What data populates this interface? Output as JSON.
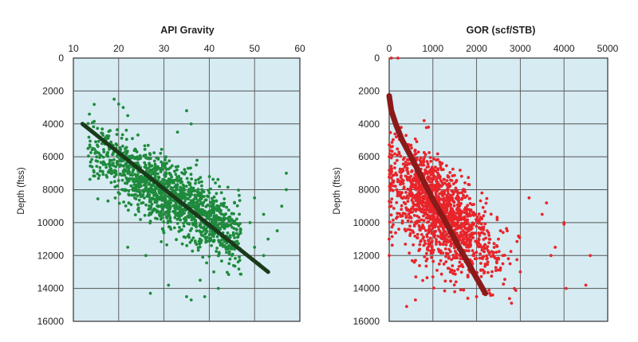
{
  "chart_data": [
    {
      "type": "scatter",
      "title": "API Gravity",
      "xlabel": "API Gravity",
      "ylabel": "Depth (ftss)",
      "xlim": [
        10,
        60
      ],
      "ylim": [
        0,
        16000
      ],
      "y_inverted": true,
      "x_axis_position": "top",
      "xticks": [
        "10",
        "20",
        "30",
        "40",
        "50",
        "60"
      ],
      "yticks": [
        "0",
        "2000",
        "4000",
        "6000",
        "8000",
        "10000",
        "12000",
        "14000",
        "16000"
      ],
      "grid": true,
      "point_color": "#1f8a3c",
      "trend_color": "#1a3a1a",
      "background_color": "#d6ebf2",
      "trend_line": {
        "x": [
          12,
          53
        ],
        "y": [
          4000,
          13000
        ]
      },
      "cloud": {
        "core_count": 1600,
        "x_range": [
          13,
          47
        ],
        "y_range": [
          2500,
          14700
        ],
        "x_spread": 5.5,
        "y_spread": 1400
      },
      "points": {
        "x": [
          19,
          20,
          21,
          22,
          35,
          36,
          33,
          57,
          57,
          56,
          55,
          53,
          52,
          52,
          50,
          49,
          50,
          51,
          27,
          35,
          36,
          38,
          41,
          42,
          22,
          26,
          31,
          39,
          45
        ],
        "y": [
          2500,
          2800,
          3000,
          3500,
          3200,
          4000,
          4500,
          7000,
          8000,
          9000,
          10500,
          11000,
          12000,
          9500,
          8500,
          10000,
          11500,
          12500,
          14300,
          14500,
          14700,
          13500,
          13000,
          14000,
          11500,
          12000,
          13800,
          14500,
          12000
        ]
      }
    },
    {
      "type": "scatter",
      "title": "GOR (scf/STB)",
      "xlabel": "GOR (scf/STB)",
      "ylabel": "Depth (ftss)",
      "xlim": [
        0,
        5000
      ],
      "ylim": [
        0,
        16000
      ],
      "y_inverted": true,
      "x_axis_position": "top",
      "xticks": [
        "0",
        "1000",
        "2000",
        "3000",
        "4000",
        "5000"
      ],
      "yticks": [
        "0",
        "2000",
        "4000",
        "6000",
        "8000",
        "10000",
        "12000",
        "14000",
        "16000"
      ],
      "grid": true,
      "point_color": "#e8252a",
      "trend_color": "#8b1a1a",
      "background_color": "#d6ebf2",
      "trend_curve": {
        "x": [
          0,
          50,
          150,
          300,
          500,
          750,
          1000,
          1300,
          1600,
          1900,
          2200
        ],
        "y": [
          2300,
          3200,
          4000,
          5000,
          6000,
          7300,
          8600,
          10000,
          11500,
          12900,
          14300
        ]
      },
      "cloud": {
        "core_count": 1500,
        "x_range": [
          0,
          3000
        ],
        "y_range": [
          3800,
          14800
        ],
        "x_spread": 500,
        "y_spread": 1400
      },
      "points": {
        "x": [
          50,
          200,
          800,
          900,
          2500,
          2600,
          3200,
          3500,
          3600,
          3700,
          4000,
          4050,
          4500,
          4600,
          2000,
          2300,
          400,
          2800,
          3000,
          1500,
          1800,
          0,
          0,
          0,
          4000,
          3800,
          2600,
          1000,
          600,
          2700
        ],
        "y": [
          0,
          0,
          3800,
          4200,
          11000,
          12000,
          8500,
          9500,
          8800,
          12000,
          10000,
          14000,
          13800,
          12000,
          14500,
          14300,
          15100,
          14900,
          13000,
          14200,
          14600,
          12000,
          11000,
          6000,
          10100,
          11500,
          12500,
          13300,
          14700,
          10500
        ]
      }
    }
  ]
}
